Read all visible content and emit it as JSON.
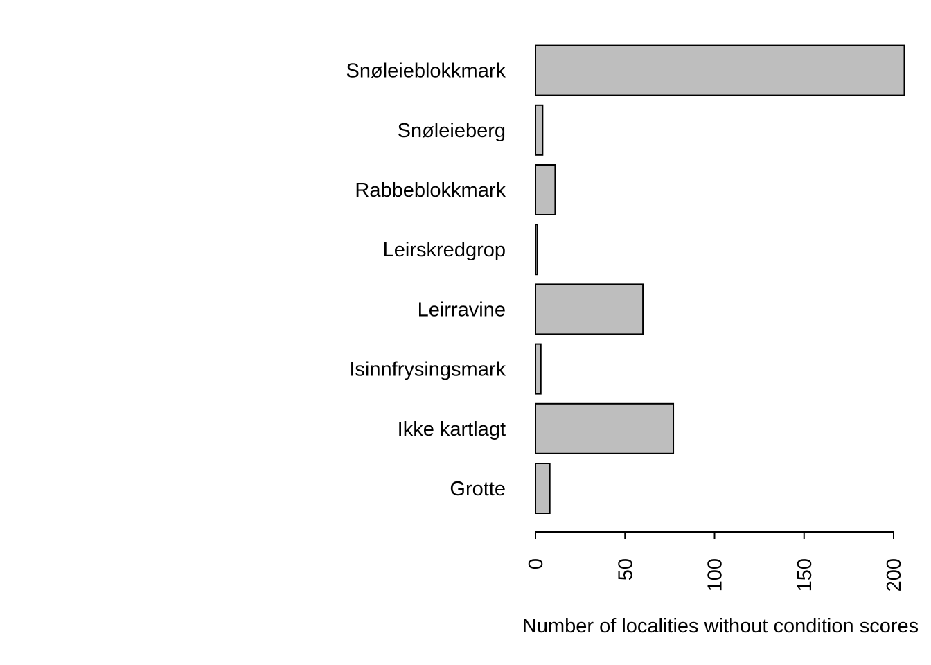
{
  "chart_data": {
    "type": "bar",
    "orientation": "horizontal",
    "categories": [
      "Grotte",
      "Ikke kartlagt",
      "Isinnfrysingsmark",
      "Leirravine",
      "Leirskredgrop",
      "Rabbeblokkmark",
      "Snøleieberg",
      "Snøleieblokkmark"
    ],
    "values": [
      8,
      77,
      3,
      60,
      1,
      11,
      4,
      206
    ],
    "title": "",
    "xlabel": "Number of localities without condition scores",
    "ylabel": "",
    "xlim": [
      0,
      206
    ],
    "xticks": [
      0,
      50,
      100,
      150,
      200
    ],
    "bar_color": "#bebebe",
    "grid": false
  }
}
